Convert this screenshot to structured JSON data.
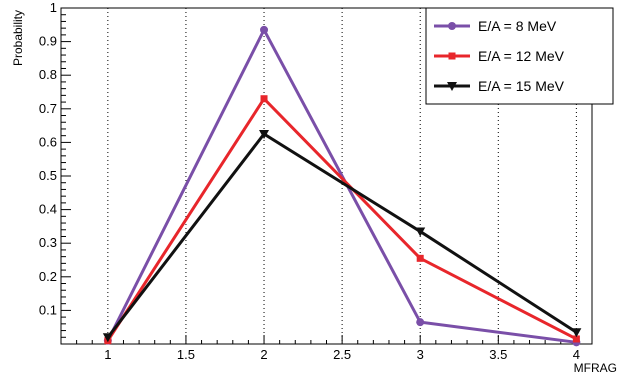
{
  "chart_data": {
    "type": "line",
    "title": "",
    "xlabel": "MFRAG",
    "ylabel": "Probability",
    "xlim": [
      0.7,
      4.1
    ],
    "ylim": [
      0,
      1
    ],
    "x_ticks": [
      "1",
      "1.5",
      "2",
      "2.5",
      "3",
      "3.5",
      "4"
    ],
    "y_ticks": [
      "0.1",
      "0.2",
      "0.3",
      "0.4",
      "0.5",
      "0.6",
      "0.7",
      "0.8",
      "0.9",
      "1"
    ],
    "grid": "vertical-dotted",
    "legend_position": "top-right",
    "x": [
      1,
      2,
      3,
      4
    ],
    "series": [
      {
        "name": "E/A = 8 MeV",
        "color": "#7a4fa8",
        "marker": "circle",
        "values": [
          0.01,
          0.935,
          0.065,
          0.005
        ]
      },
      {
        "name": "E/A = 12 MeV",
        "color": "#e8262b",
        "marker": "square",
        "values": [
          0.01,
          0.73,
          0.255,
          0.015
        ]
      },
      {
        "name": "E/A = 15 MeV",
        "color": "#111111",
        "marker": "triangle-down",
        "values": [
          0.02,
          0.625,
          0.335,
          0.035
        ]
      }
    ]
  }
}
